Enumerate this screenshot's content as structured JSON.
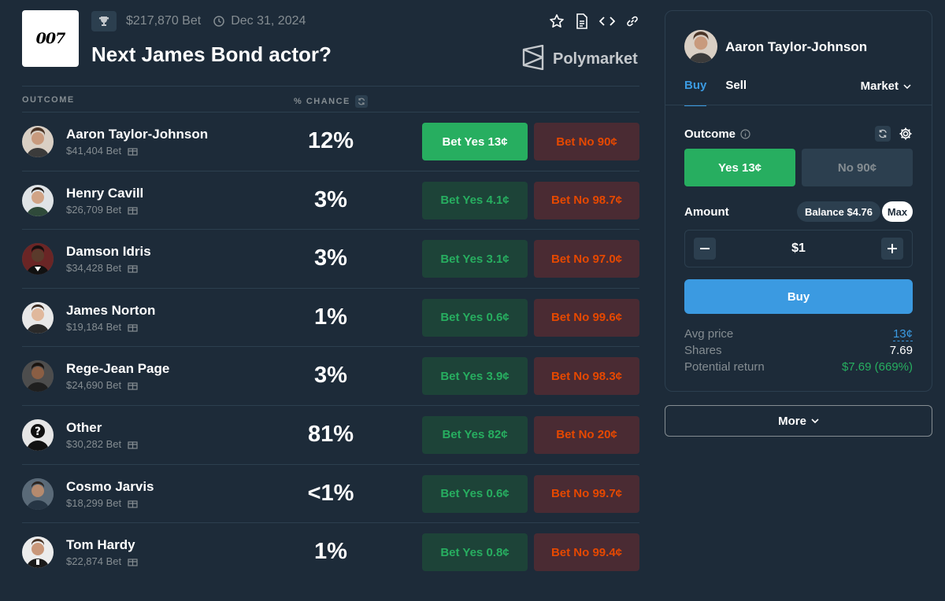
{
  "market": {
    "logo_text": "007",
    "volume": "$217,870 Bet",
    "end_date": "Dec 31, 2024",
    "title": "Next James Bond actor?",
    "brand": "Polymarket"
  },
  "table": {
    "col_outcome": "OUTCOME",
    "col_chance": "% CHANCE",
    "rows": [
      {
        "name": "Aaron Taylor-Johnson",
        "volume": "$41,404 Bet",
        "chance": "12%",
        "yes": "Bet Yes 13¢",
        "no": "Bet No 90¢",
        "active": true
      },
      {
        "name": "Henry Cavill",
        "volume": "$26,709 Bet",
        "chance": "3%",
        "yes": "Bet Yes 4.1¢",
        "no": "Bet No 98.7¢"
      },
      {
        "name": "Damson Idris",
        "volume": "$34,428 Bet",
        "chance": "3%",
        "yes": "Bet Yes 3.1¢",
        "no": "Bet No 97.0¢"
      },
      {
        "name": "James Norton",
        "volume": "$19,184 Bet",
        "chance": "1%",
        "yes": "Bet Yes 0.6¢",
        "no": "Bet No 99.6¢"
      },
      {
        "name": "Rege-Jean Page",
        "volume": "$24,690 Bet",
        "chance": "3%",
        "yes": "Bet Yes 3.9¢",
        "no": "Bet No 98.3¢"
      },
      {
        "name": "Other",
        "volume": "$30,282 Bet",
        "chance": "81%",
        "yes": "Bet Yes 82¢",
        "no": "Bet No 20¢"
      },
      {
        "name": "Cosmo Jarvis",
        "volume": "$18,299 Bet",
        "chance": "<1%",
        "yes": "Bet Yes 0.6¢",
        "no": "Bet No 99.7¢"
      },
      {
        "name": "Tom Hardy",
        "volume": "$22,874 Bet",
        "chance": "1%",
        "yes": "Bet Yes 0.8¢",
        "no": "Bet No 99.4¢"
      }
    ]
  },
  "panel": {
    "selected_name": "Aaron Taylor-Johnson",
    "tab_buy": "Buy",
    "tab_sell": "Sell",
    "order_type": "Market",
    "outcome_label": "Outcome",
    "yes_label": "Yes 13¢",
    "no_label": "No 90¢",
    "amount_label": "Amount",
    "balance": "Balance $4.76",
    "max": "Max",
    "amount_value": "$1",
    "buy_button": "Buy",
    "avg_price_label": "Avg price",
    "avg_price": "13¢",
    "shares_label": "Shares",
    "shares": "7.69",
    "potential_label": "Potential return",
    "potential": "$7.69 (669%)"
  },
  "more_button": "More",
  "colors": {
    "background": "#1d2b39",
    "border": "#2c3f4f",
    "green": "#27ae60",
    "red": "#e64800",
    "blue": "#3b9ae1",
    "muted": "#858d92"
  }
}
